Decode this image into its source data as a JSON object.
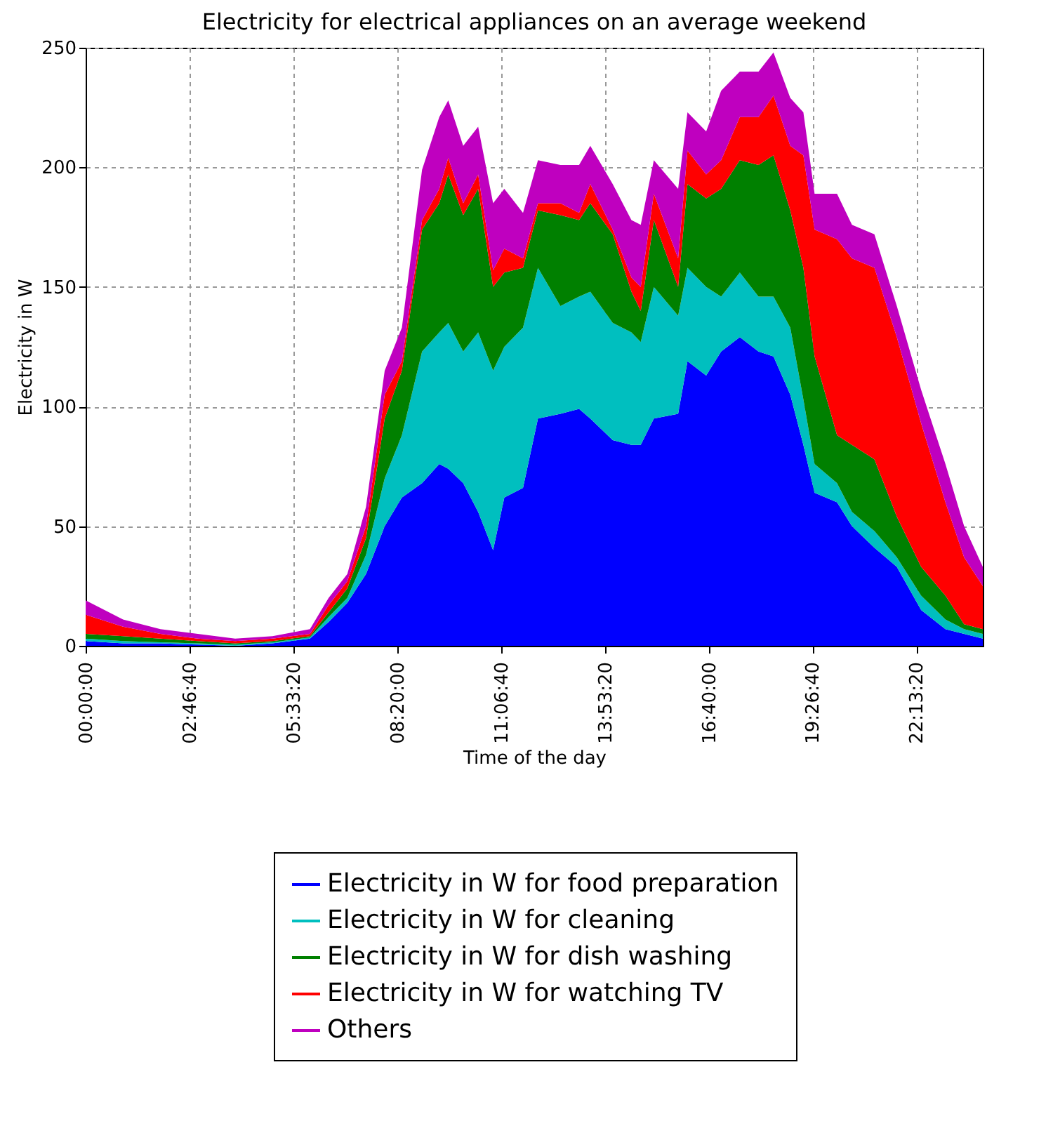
{
  "chart_data": {
    "type": "area",
    "stacked": true,
    "title": "Electricity for electrical appliances on an average weekend",
    "xlabel": "Time of the day",
    "ylabel": "Electricity in W",
    "x": [
      0,
      1,
      2,
      3,
      4,
      5,
      6,
      6.5,
      7,
      7.5,
      8,
      8.46,
      9,
      9.46,
      9.7,
      10.1,
      10.5,
      10.9,
      11.2,
      11.7,
      12.1,
      12.7,
      13.2,
      13.5,
      14.1,
      14.6,
      14.85,
      15.2,
      15.85,
      16.1,
      16.6,
      17,
      17.5,
      18,
      18.4,
      18.85,
      19.2,
      19.5,
      20.1,
      20.5,
      21.1,
      21.7,
      22.35,
      23,
      23.5,
      24
    ],
    "series": [
      {
        "name": "Electricity in W for food preparation",
        "color": "#0000ff",
        "values": [
          2,
          1,
          1,
          0.5,
          0,
          1,
          3,
          10,
          18,
          30,
          50,
          62,
          68,
          76,
          74,
          68,
          56,
          40,
          62,
          66,
          95,
          97,
          99,
          95,
          86,
          84,
          84,
          95,
          97,
          119,
          113,
          123,
          129,
          123,
          121,
          105,
          84,
          64,
          60,
          50,
          41,
          33,
          15,
          7,
          5,
          3
        ]
      },
      {
        "name": "Electricity in W for cleaning",
        "color": "#00bfbf",
        "values": [
          1,
          1,
          0.5,
          0.5,
          0.5,
          0.5,
          0.5,
          2,
          2,
          8,
          20,
          26,
          55,
          55,
          61,
          55,
          75,
          75,
          63,
          67,
          63,
          45,
          47,
          53,
          49,
          47,
          43,
          55,
          41,
          39,
          37,
          23,
          27,
          23,
          25,
          28,
          19,
          12,
          8,
          6,
          7,
          4,
          6,
          4,
          2,
          2
        ]
      },
      {
        "name": "Electricity in W for dish washing",
        "color": "#008000",
        "values": [
          2,
          2,
          1.5,
          1,
          0.5,
          0.5,
          0.5,
          2,
          4,
          7,
          25,
          27,
          51,
          54,
          62,
          57,
          60,
          35,
          31,
          25,
          24,
          38,
          32,
          37,
          37,
          17,
          13,
          28,
          12,
          35,
          37,
          45,
          47,
          55,
          59,
          49,
          55,
          45,
          20,
          28,
          30,
          17,
          12,
          10,
          2,
          2
        ]
      },
      {
        "name": "Electricity in W for watching TV",
        "color": "#ff0000",
        "values": [
          8,
          4,
          2,
          1,
          1,
          1,
          1,
          3,
          3,
          5,
          10,
          4,
          4,
          6,
          7,
          5,
          6,
          7,
          10,
          4,
          3,
          5,
          3,
          8,
          2,
          6,
          10,
          11,
          12,
          14,
          10,
          12,
          18,
          20,
          25,
          27,
          47,
          53,
          82,
          78,
          80,
          75,
          60,
          39,
          28,
          18
        ]
      },
      {
        "name": "Others",
        "color": "#bf00bf",
        "values": [
          6,
          3,
          2,
          2,
          1,
          1,
          2,
          3,
          3,
          8,
          10,
          14,
          21,
          30,
          24,
          24,
          20,
          28,
          25,
          19,
          18,
          16,
          20,
          16,
          19,
          24,
          26,
          14,
          29,
          16,
          18,
          29,
          19,
          19,
          18,
          20,
          18,
          15,
          19,
          14,
          14,
          13,
          14,
          16,
          13,
          8
        ]
      }
    ],
    "xlim": [
      0,
      24
    ],
    "xticks": [
      {
        "value": 0,
        "label": "00:00:00"
      },
      {
        "value": 2.7777778,
        "label": "02:46:40"
      },
      {
        "value": 5.5555556,
        "label": "05:33:20"
      },
      {
        "value": 8.3333333,
        "label": "08:20:00"
      },
      {
        "value": 11.1111111,
        "label": "11:06:40"
      },
      {
        "value": 13.8888889,
        "label": "13:53:20"
      },
      {
        "value": 16.6666667,
        "label": "16:40:00"
      },
      {
        "value": 19.4444444,
        "label": "19:26:40"
      },
      {
        "value": 22.2222222,
        "label": "22:13:20"
      }
    ],
    "ylim": [
      0,
      250
    ],
    "yticks": [
      0,
      50,
      100,
      150,
      200,
      250
    ],
    "grid": true,
    "legend": "bottom"
  }
}
